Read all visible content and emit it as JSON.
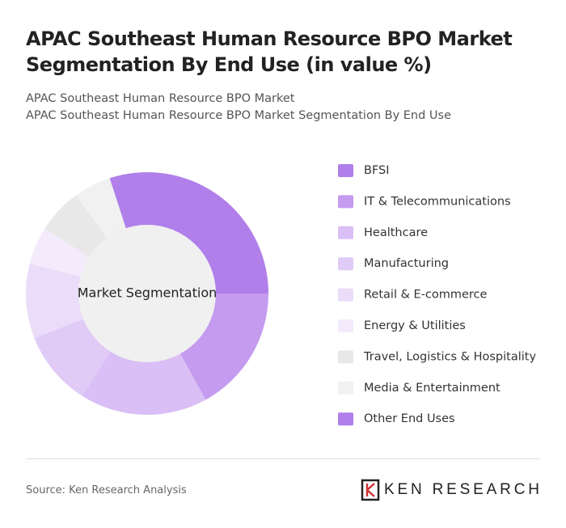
{
  "chart_data": {
    "type": "donut",
    "title": "APAC Southeast Human Resource BPO Market Segmentation By End Use (in value %)",
    "subtitle": [
      "APAC Southeast Human Resource BPO Market",
      "APAC Southeast Human Resource BPO Market Segmentation By End Use"
    ],
    "center_label": "Market Segmentation",
    "categories": [
      "BFSI",
      "IT & Telecommunications",
      "Healthcare",
      "Manufacturing",
      "Retail & E-commerce",
      "Energy & Utilities",
      "Travel, Logistics & Hospitality",
      "Media & Entertainment",
      "Other End Uses"
    ],
    "values": [
      25,
      17,
      17,
      10,
      10,
      5,
      6,
      5,
      5
    ],
    "colors": [
      "#b07fea",
      "#c49bef",
      "#d9bff5",
      "#e0cbf7",
      "#ebdcf9",
      "#f3ebfc",
      "#e8e8e8",
      "#f1f1f1",
      "#b07fea"
    ],
    "source": "Source: Ken Research Analysis",
    "logo": "KEN RESEARCH"
  }
}
